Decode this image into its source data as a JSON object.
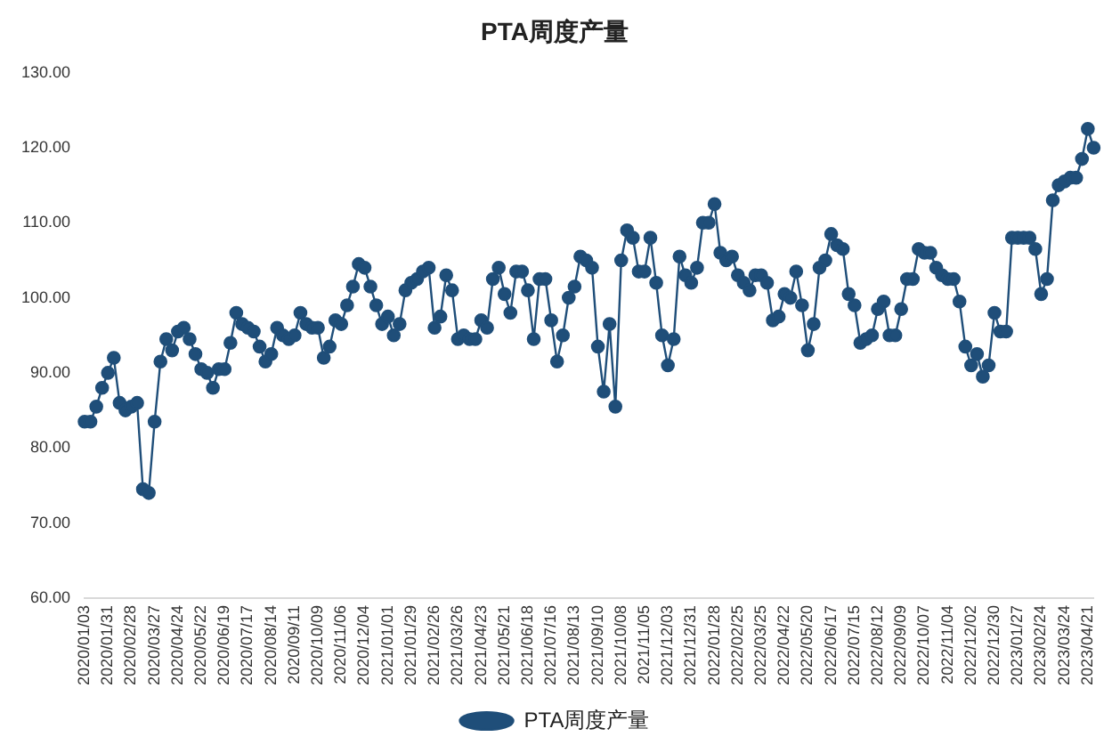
{
  "chart_data": {
    "type": "line",
    "title": "PTA周度产量",
    "categories": [
      "2020/01/03",
      null,
      null,
      null,
      "2020/01/31",
      null,
      null,
      null,
      "2020/02/28",
      null,
      null,
      null,
      "2020/03/27",
      null,
      null,
      null,
      "2020/04/24",
      null,
      null,
      null,
      "2020/05/22",
      null,
      null,
      null,
      "2020/06/19",
      null,
      null,
      null,
      "2020/07/17",
      null,
      null,
      null,
      "2020/08/14",
      null,
      null,
      null,
      "2020/09/11",
      null,
      null,
      null,
      "2020/10/09",
      null,
      null,
      null,
      "2020/11/06",
      null,
      null,
      null,
      "2020/12/04",
      null,
      null,
      null,
      "2021/01/01",
      null,
      null,
      null,
      "2021/01/29",
      null,
      null,
      null,
      "2021/02/26",
      null,
      null,
      null,
      "2021/03/26",
      null,
      null,
      null,
      "2021/04/23",
      null,
      null,
      null,
      "2021/05/21",
      null,
      null,
      null,
      "2021/06/18",
      null,
      null,
      null,
      "2021/07/16",
      null,
      null,
      null,
      "2021/08/13",
      null,
      null,
      null,
      "2021/09/10",
      null,
      null,
      null,
      "2021/10/08",
      null,
      null,
      null,
      "2021/11/05",
      null,
      null,
      null,
      "2021/12/03",
      null,
      null,
      null,
      "2021/12/31",
      null,
      null,
      null,
      "2022/01/28",
      null,
      null,
      null,
      "2022/02/25",
      null,
      null,
      null,
      "2022/03/25",
      null,
      null,
      null,
      "2022/04/22",
      null,
      null,
      null,
      "2022/05/20",
      null,
      null,
      null,
      "2022/06/17",
      null,
      null,
      null,
      "2022/07/15",
      null,
      null,
      null,
      "2022/08/12",
      null,
      null,
      null,
      "2022/09/09",
      null,
      null,
      null,
      "2022/10/07",
      null,
      null,
      null,
      "2022/11/04",
      null,
      null,
      null,
      "2022/12/02",
      null,
      null,
      null,
      "2022/12/30",
      null,
      null,
      null,
      "2023/01/27",
      null,
      null,
      null,
      "2023/02/24",
      null,
      null,
      null,
      "2023/03/24",
      null,
      null,
      null,
      "2023/04/21",
      null
    ],
    "series": [
      {
        "name": "PTA周度产量",
        "color": "#1f4e79",
        "values": [
          83.5,
          83.5,
          85.5,
          88,
          90,
          92,
          86,
          85,
          85.5,
          86,
          74.5,
          74,
          83.5,
          91.5,
          94.5,
          93,
          95.5,
          96,
          94.5,
          92.5,
          90.5,
          90,
          88,
          90.5,
          90.5,
          94,
          98,
          96.5,
          96,
          95.5,
          93.5,
          91.5,
          92.5,
          96,
          95,
          94.5,
          95,
          98,
          96.5,
          96,
          96,
          92,
          93.5,
          97,
          96.5,
          99,
          101.5,
          104.5,
          104,
          101.5,
          99,
          96.5,
          97.5,
          95,
          96.5,
          101,
          102,
          102.5,
          103.5,
          104,
          96,
          97.5,
          103,
          101,
          94.5,
          95,
          94.5,
          94.5,
          97,
          96,
          102.5,
          104,
          100.5,
          98,
          103.5,
          103.5,
          101,
          94.5,
          102.5,
          102.5,
          97,
          91.5,
          95,
          100,
          101.5,
          105.5,
          105,
          104,
          93.5,
          87.5,
          96.5,
          85.5,
          105,
          109,
          108,
          103.5,
          103.5,
          108,
          102,
          95,
          91,
          94.5,
          105.5,
          103,
          102,
          104,
          110,
          110,
          112.5,
          106,
          105,
          105.5,
          103,
          102,
          101,
          103,
          103,
          102,
          97,
          97.5,
          100.5,
          100,
          103.5,
          99,
          93,
          96.5,
          104,
          105,
          108.5,
          107,
          106.5,
          100.5,
          99,
          94,
          94.5,
          95,
          98.5,
          99.5,
          95,
          95,
          98.5,
          102.5,
          102.5,
          106.5,
          106,
          106,
          104,
          103,
          102.5,
          102.5,
          99.5,
          93.5,
          91,
          92.5,
          89.5,
          91,
          98,
          95.5,
          95.5,
          108,
          108,
          108,
          108,
          106.5,
          100.5,
          102.5,
          113,
          115,
          115.5,
          116,
          116,
          118.5,
          122.5,
          120
        ]
      }
    ],
    "ylim": [
      60,
      130
    ],
    "yticks": [
      {
        "value": 60,
        "label": "60.00"
      },
      {
        "value": 70,
        "label": "70.00"
      },
      {
        "value": 80,
        "label": "80.00"
      },
      {
        "value": 90,
        "label": "90.00"
      },
      {
        "value": 100,
        "label": "100.00"
      },
      {
        "value": 110,
        "label": "110.00"
      },
      {
        "value": 120,
        "label": "120.00"
      },
      {
        "value": 130,
        "label": "130.00"
      }
    ],
    "grid": false,
    "legend": "bottom",
    "marker": "circle",
    "line_style": "solid"
  }
}
